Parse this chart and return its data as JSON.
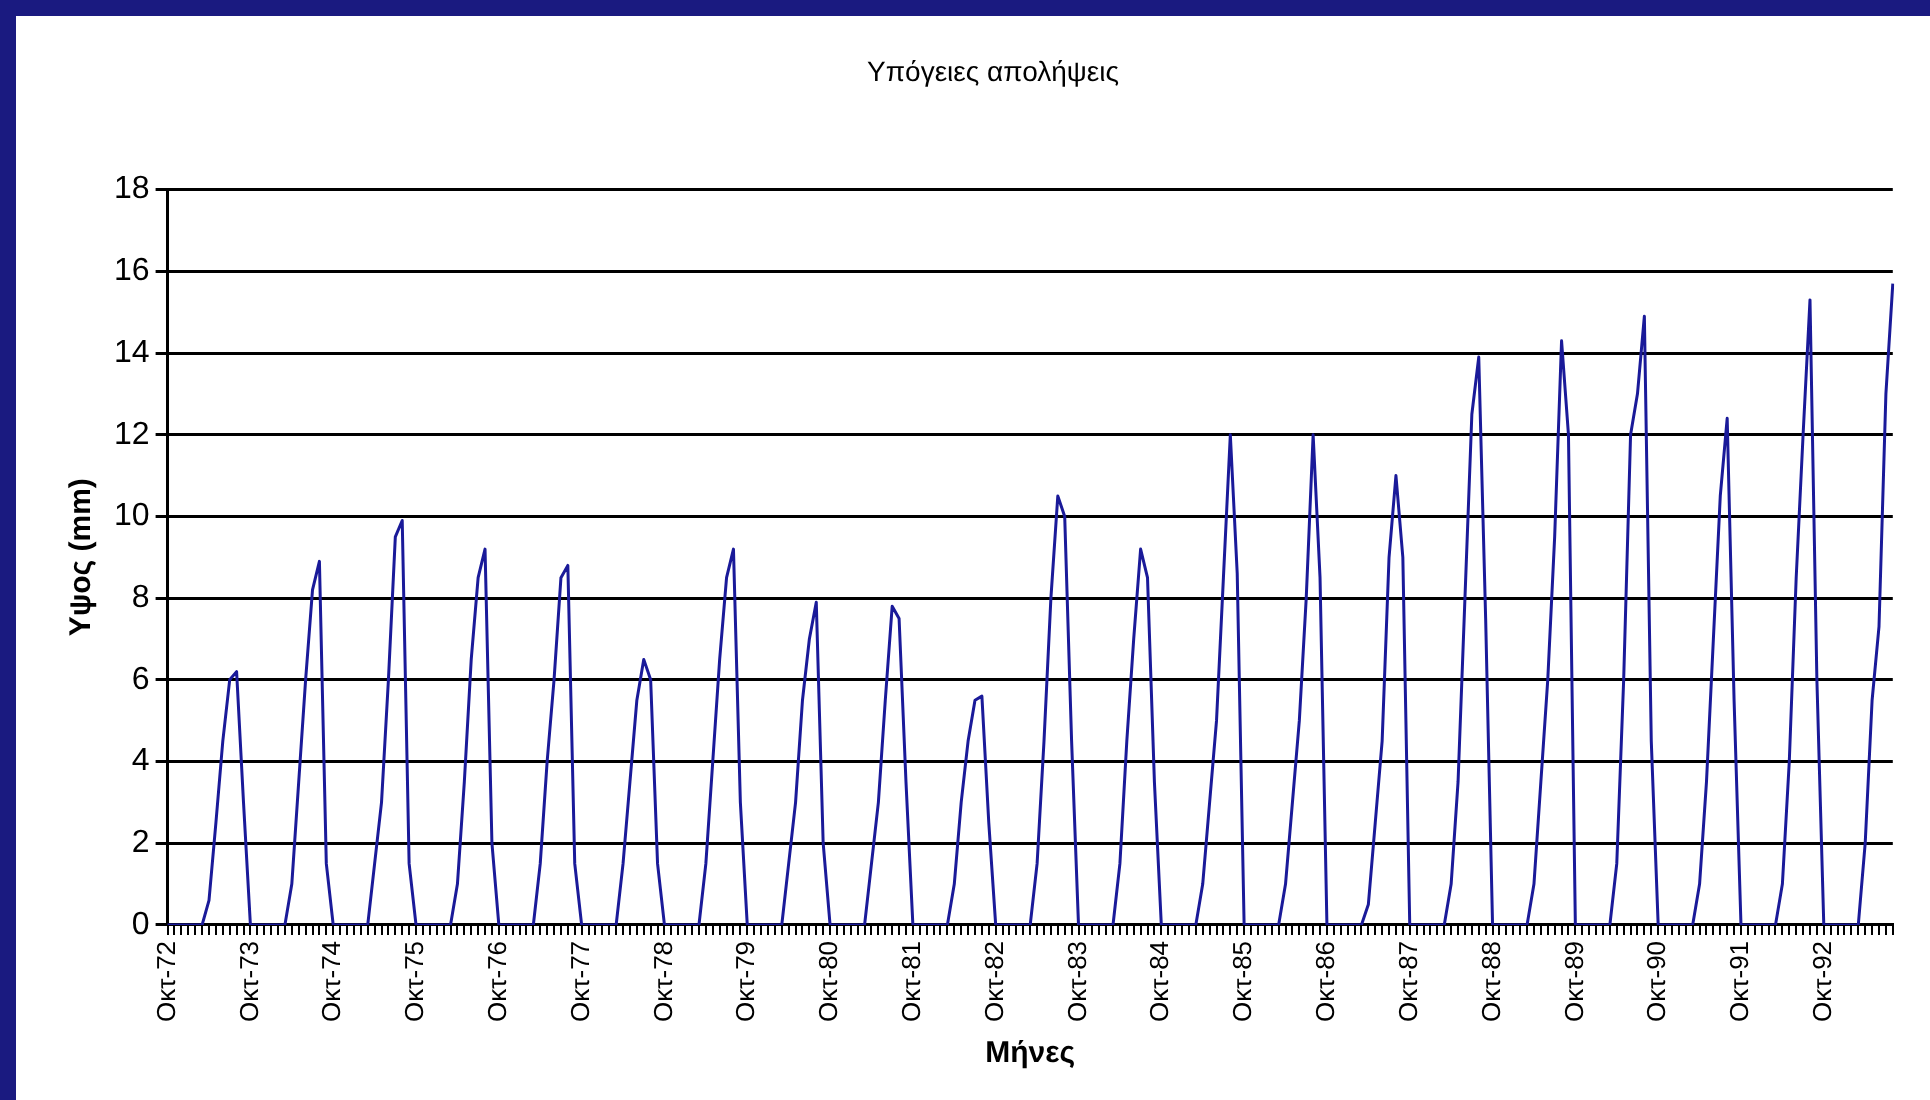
{
  "chart_data": {
    "type": "line",
    "title": "Υπόγειες απολήψεις",
    "xlabel": "Μήνες",
    "ylabel": "Υψος (mm)",
    "categories": [
      "Οκτ-72",
      null,
      null,
      null,
      null,
      null,
      null,
      null,
      null,
      null,
      null,
      null,
      "Οκτ-73",
      null,
      null,
      null,
      null,
      null,
      null,
      null,
      null,
      null,
      null,
      null,
      "Οκτ-74",
      null,
      null,
      null,
      null,
      null,
      null,
      null,
      null,
      null,
      null,
      null,
      "Οκτ-75",
      null,
      null,
      null,
      null,
      null,
      null,
      null,
      null,
      null,
      null,
      null,
      "Οκτ-76",
      null,
      null,
      null,
      null,
      null,
      null,
      null,
      null,
      null,
      null,
      null,
      "Οκτ-77",
      null,
      null,
      null,
      null,
      null,
      null,
      null,
      null,
      null,
      null,
      null,
      "Οκτ-78",
      null,
      null,
      null,
      null,
      null,
      null,
      null,
      null,
      null,
      null,
      null,
      "Οκτ-79",
      null,
      null,
      null,
      null,
      null,
      null,
      null,
      null,
      null,
      null,
      null,
      "Οκτ-80",
      null,
      null,
      null,
      null,
      null,
      null,
      null,
      null,
      null,
      null,
      null,
      "Οκτ-81",
      null,
      null,
      null,
      null,
      null,
      null,
      null,
      null,
      null,
      null,
      null,
      "Οκτ-82",
      null,
      null,
      null,
      null,
      null,
      null,
      null,
      null,
      null,
      null,
      null,
      "Οκτ-83",
      null,
      null,
      null,
      null,
      null,
      null,
      null,
      null,
      null,
      null,
      null,
      "Οκτ-84",
      null,
      null,
      null,
      null,
      null,
      null,
      null,
      null,
      null,
      null,
      null,
      "Οκτ-85",
      null,
      null,
      null,
      null,
      null,
      null,
      null,
      null,
      null,
      null,
      null,
      "Οκτ-86",
      null,
      null,
      null,
      null,
      null,
      null,
      null,
      null,
      null,
      null,
      null,
      "Οκτ-87",
      null,
      null,
      null,
      null,
      null,
      null,
      null,
      null,
      null,
      null,
      null,
      "Οκτ-88",
      null,
      null,
      null,
      null,
      null,
      null,
      null,
      null,
      null,
      null,
      null,
      "Οκτ-89",
      null,
      null,
      null,
      null,
      null,
      null,
      null,
      null,
      null,
      null,
      null,
      "Οκτ-90",
      null,
      null,
      null,
      null,
      null,
      null,
      null,
      null,
      null,
      null,
      null,
      "Οκτ-91",
      null,
      null,
      null,
      null,
      null,
      null,
      null,
      null,
      null,
      null,
      null,
      "Οκτ-92",
      null,
      null,
      null,
      null,
      null,
      null,
      null,
      null,
      null,
      null
    ],
    "series": [
      {
        "color": "#1a1a99",
        "values": [
          0,
          0,
          0,
          0,
          0,
          0,
          0.6,
          2.5,
          4.5,
          6.0,
          6.2,
          3.0,
          0,
          0,
          0,
          0,
          0,
          0,
          1.0,
          3.5,
          6.0,
          8.2,
          8.9,
          1.5,
          0,
          0,
          0,
          0,
          0,
          0,
          1.5,
          3.0,
          6.0,
          9.5,
          9.9,
          1.5,
          0,
          0,
          0,
          0,
          0,
          0,
          1.0,
          3.5,
          6.5,
          8.5,
          9.2,
          2.0,
          0,
          0,
          0,
          0,
          0,
          0,
          1.5,
          4.0,
          6.0,
          8.5,
          8.8,
          1.5,
          0,
          0,
          0,
          0,
          0,
          0,
          1.5,
          3.5,
          5.5,
          6.5,
          6.0,
          1.5,
          0,
          0,
          0,
          0,
          0,
          0,
          1.5,
          4.0,
          6.5,
          8.5,
          9.2,
          3.0,
          0,
          0,
          0,
          0,
          0,
          0,
          1.5,
          3.0,
          5.5,
          7.0,
          7.9,
          2.0,
          0,
          0,
          0,
          0,
          0,
          0,
          1.5,
          3.0,
          5.5,
          7.8,
          7.5,
          3.5,
          0,
          0,
          0,
          0,
          0,
          0,
          1.0,
          3.0,
          4.5,
          5.5,
          5.6,
          2.5,
          0,
          0,
          0,
          0,
          0,
          0,
          1.5,
          4.5,
          8.0,
          10.5,
          10.0,
          4.5,
          0,
          0,
          0,
          0,
          0,
          0,
          1.5,
          4.5,
          7.0,
          9.2,
          8.5,
          3.5,
          0,
          0,
          0,
          0,
          0,
          0,
          1.0,
          3.0,
          5.0,
          8.5,
          12.0,
          8.6,
          0,
          0,
          0,
          0,
          0,
          0,
          1.0,
          3.0,
          5.0,
          8.0,
          12.0,
          8.5,
          0,
          0,
          0,
          0,
          0,
          0,
          0.5,
          2.5,
          4.5,
          9.0,
          11.0,
          9.0,
          0,
          0,
          0,
          0,
          0,
          0,
          1.0,
          3.5,
          8.0,
          12.5,
          13.9,
          7.5,
          0,
          0,
          0,
          0,
          0,
          0,
          1.0,
          3.5,
          6.0,
          9.5,
          14.3,
          12.0,
          0,
          0,
          0,
          0,
          0,
          0,
          1.5,
          6.0,
          12.0,
          13.0,
          14.9,
          4.5,
          0,
          0,
          0,
          0,
          0,
          0,
          1.0,
          3.5,
          7.0,
          10.5,
          12.4,
          5.5,
          0,
          0,
          0,
          0,
          0,
          0,
          1.0,
          4.0,
          8.5,
          12.0,
          15.3,
          6.0,
          0,
          0,
          0,
          0,
          0,
          0,
          2.0,
          5.5,
          7.3,
          13.0,
          15.7
        ]
      }
    ],
    "ylim": [
      0,
      18
    ],
    "yticks": [
      0,
      2,
      4,
      6,
      8,
      10,
      12,
      14,
      16,
      18
    ],
    "grid": "y",
    "legend": false,
    "marker": "none",
    "line_style": "solid"
  }
}
